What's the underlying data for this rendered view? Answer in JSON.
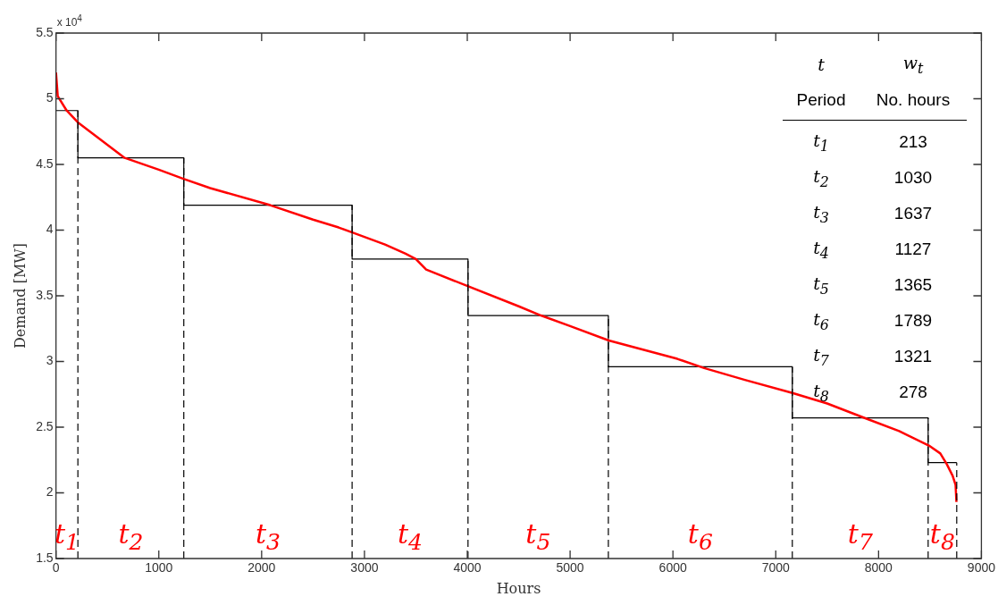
{
  "chart_data": {
    "type": "line",
    "xlabel": "Hours",
    "ylabel": "Demand [MW]",
    "xlim": [
      0,
      9000
    ],
    "xticks": [
      0,
      1000,
      2000,
      3000,
      4000,
      5000,
      6000,
      7000,
      8000,
      9000
    ],
    "ylim": [
      1.5,
      5.5
    ],
    "yticks": [
      1.5,
      2,
      2.5,
      3,
      3.5,
      4,
      4.5,
      5,
      5.5
    ],
    "grid": false,
    "legend": false,
    "marker": "none",
    "line_style": "solid",
    "series": [
      {
        "color": "#ff0000",
        "x": [
          0,
          17,
          104,
          213,
          668,
          1000,
          1240,
          1500,
          2083,
          2500,
          2749,
          2888,
          3200,
          3400,
          3500,
          3600,
          4015,
          4500,
          4717,
          5000,
          5376,
          6043,
          6304,
          6700,
          7162,
          7500,
          7865,
          8200,
          8489,
          8600,
          8662,
          8720,
          8749,
          8757
        ],
        "values": [
          5.2,
          5.02,
          4.91,
          4.82,
          4.55,
          4.46,
          4.39,
          4.32,
          4.19,
          4.08,
          4.02,
          3.98,
          3.89,
          3.82,
          3.78,
          3.7,
          3.57,
          3.42,
          3.35,
          3.27,
          3.16,
          3.02,
          2.95,
          2.86,
          2.76,
          2.68,
          2.57,
          2.47,
          2.36,
          2.3,
          2.22,
          2.13,
          2.06,
          1.93
        ]
      },
      {
        "type": "step",
        "color": "#000000",
        "x": [
          0,
          213,
          1243,
          2880,
          4007,
          5372,
          7161,
          8482,
          8760
        ],
        "values": [
          4.91,
          4.55,
          4.19,
          3.78,
          3.35,
          2.96,
          2.57,
          2.23,
          2.23
        ]
      }
    ],
    "ref_lines": [
      {
        "axis": "x",
        "value": 213,
        "line_style": "dashed",
        "color": "#000000"
      },
      {
        "axis": "x",
        "value": 1243,
        "line_style": "dashed",
        "color": "#000000"
      },
      {
        "axis": "x",
        "value": 2880,
        "line_style": "dashed",
        "color": "#000000"
      },
      {
        "axis": "x",
        "value": 4007,
        "line_style": "dashed",
        "color": "#000000"
      },
      {
        "axis": "x",
        "value": 5372,
        "line_style": "dashed",
        "color": "#000000"
      },
      {
        "axis": "x",
        "value": 7161,
        "line_style": "dashed",
        "color": "#000000"
      },
      {
        "axis": "x",
        "value": 8482,
        "line_style": "dashed",
        "color": "#000000"
      },
      {
        "axis": "x",
        "value": 8760,
        "line_style": "dashed",
        "color": "#000000"
      }
    ],
    "annotations": [
      "x 10$^{4}$",
      "t$_{1}$",
      "t$_{2}$",
      "t$_{3}$",
      "t$_{4}$",
      "t$_{5}$",
      "t$_{6}$",
      "t$_{7}$",
      "t$_{8}$",
      "t",
      "w$_{t}$",
      "Period",
      "No. hours",
      "t$_{1}$",
      "213",
      "t$_{2}$",
      "1030",
      "t$_{3}$",
      "1637",
      "t$_{4}$",
      "1127",
      "t$_{5}$",
      "1365",
      "t$_{6}$",
      "1789",
      "t$_{7}$",
      "1321",
      "t$_{8}$",
      "278"
    ]
  }
}
